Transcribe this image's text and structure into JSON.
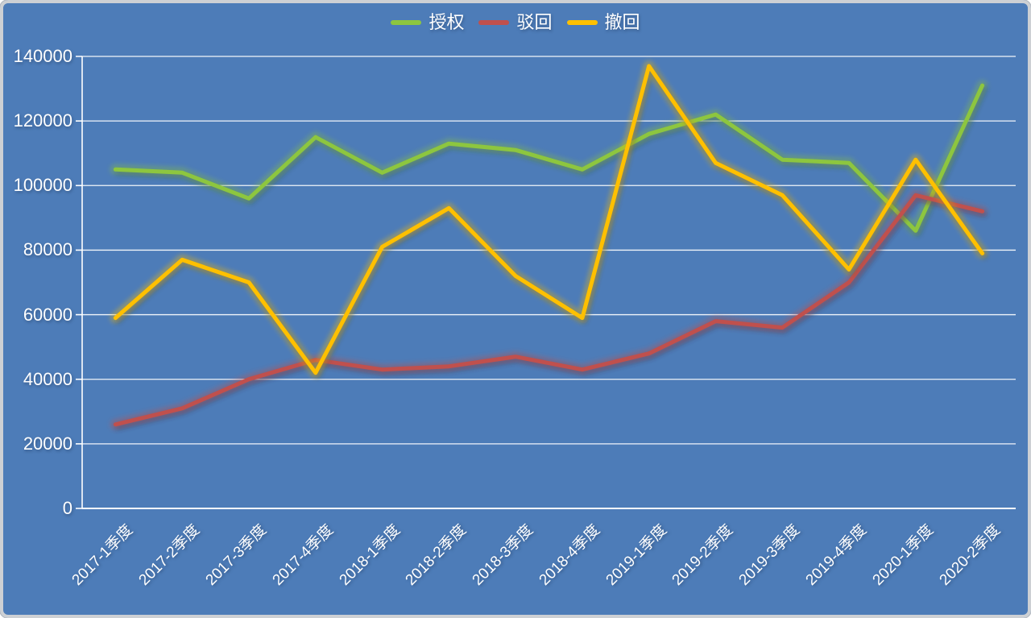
{
  "chart_data": {
    "type": "line",
    "title": "",
    "xlabel": "",
    "ylabel": "",
    "categories": [
      "2017-1季度",
      "2017-2季度",
      "2017-3季度",
      "2017-4季度",
      "2018-1季度",
      "2018-2季度",
      "2018-3季度",
      "2018-4季度",
      "2019-1季度",
      "2019-2季度",
      "2019-3季度",
      "2019-4季度",
      "2020-1季度",
      "2020-2季度"
    ],
    "series": [
      {
        "name": "授权",
        "color": "#8DC63F",
        "values": [
          105000,
          104000,
          96000,
          115000,
          104000,
          113000,
          111000,
          105000,
          116000,
          122000,
          108000,
          107000,
          86000,
          131000
        ]
      },
      {
        "name": "驳回",
        "color": "#C0504D",
        "values": [
          26000,
          31000,
          40000,
          46000,
          43000,
          44000,
          47000,
          43000,
          48000,
          58000,
          56000,
          70000,
          97000,
          92000
        ]
      },
      {
        "name": "撤回",
        "color": "#FFC000",
        "values": [
          59000,
          77000,
          70000,
          42000,
          81000,
          93000,
          72000,
          59000,
          137000,
          107000,
          97000,
          74000,
          108000,
          79000
        ]
      }
    ],
    "ylim": [
      0,
      140000
    ],
    "ytick_step": 20000,
    "yticks": [
      "0",
      "20000",
      "40000",
      "60000",
      "80000",
      "100000",
      "120000",
      "140000"
    ],
    "legend_position": "top-center",
    "grid": "horizontal white gridlines on blue background"
  },
  "colors": {
    "background": "#4D7CB8",
    "gridline": "#FFFFFF",
    "axis": "#FFFFFF",
    "text": "#FFFFFF",
    "frame_border": "#CDD0D4"
  }
}
